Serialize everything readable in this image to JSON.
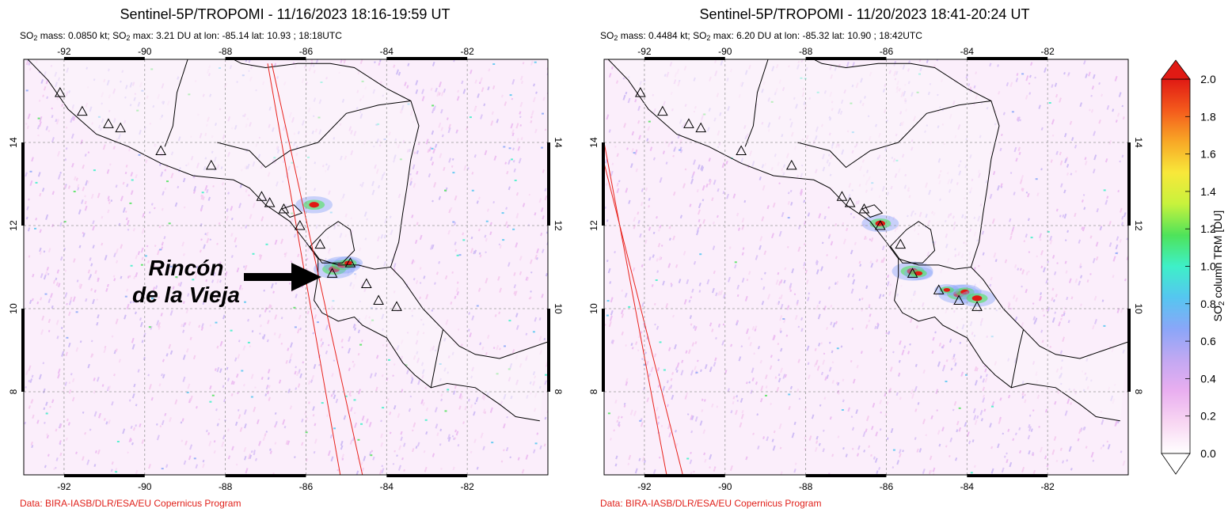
{
  "panels": [
    {
      "title": "Sentinel-5P/TROPOMI - 11/16/2023 18:16-19:59 UT",
      "stats": {
        "mass_label": "SO",
        "mass_sub": "2",
        "mass_value": " mass: 0.0850 kt; ",
        "max_label": "SO",
        "max_sub": "2",
        "max_value": " max: 3.21 DU at lon: -85.14 lat: 10.93 ; 18:18UTC"
      },
      "credit": "Data: BIRA-IASB/DLR/ESA/EU Copernicus Program",
      "volcanoes": [
        [
          -92.1,
          15.2
        ],
        [
          -91.55,
          14.75
        ],
        [
          -90.9,
          14.45
        ],
        [
          -90.6,
          14.35
        ],
        [
          -89.6,
          13.8
        ],
        [
          -88.35,
          13.45
        ],
        [
          -87.1,
          12.7
        ],
        [
          -86.9,
          12.55
        ],
        [
          -86.55,
          12.4
        ],
        [
          -86.15,
          12.0
        ],
        [
          -85.65,
          11.55
        ],
        [
          -85.35,
          10.85
        ],
        [
          -84.9,
          11.1
        ],
        [
          -84.5,
          10.6
        ],
        [
          -84.2,
          10.2
        ],
        [
          -83.75,
          10.05
        ]
      ],
      "hotspots": [
        [
          -85.3,
          10.95,
          1.0
        ],
        [
          -85.1,
          11.05,
          0.9
        ],
        [
          -84.95,
          11.1,
          0.7
        ],
        [
          -85.8,
          12.5,
          0.9
        ]
      ],
      "ground_track": [
        [
          -86.95,
          15.9,
          -85.15,
          6.0
        ],
        [
          -86.85,
          15.9,
          -84.6,
          6.0
        ]
      ],
      "annotation": {
        "line1": "Rincón",
        "line2": "de la Vieja"
      }
    },
    {
      "title": "Sentinel-5P/TROPOMI - 11/20/2023 18:41-20:24 UT",
      "stats": {
        "mass_label": "SO",
        "mass_sub": "2",
        "mass_value": " mass: 0.4484 kt; ",
        "max_label": "SO",
        "max_sub": "2",
        "max_value": " max: 6.20 DU at lon: -85.32 lat: 10.90 ; 18:42UTC"
      },
      "credit": "Data: BIRA-IASB/DLR/ESA/EU Copernicus Program",
      "volcanoes": [
        [
          -92.1,
          15.2
        ],
        [
          -91.55,
          14.75
        ],
        [
          -90.9,
          14.45
        ],
        [
          -90.6,
          14.35
        ],
        [
          -89.6,
          13.8
        ],
        [
          -88.35,
          13.45
        ],
        [
          -87.1,
          12.7
        ],
        [
          -86.9,
          12.55
        ],
        [
          -86.55,
          12.4
        ],
        [
          -86.15,
          12.0
        ],
        [
          -85.65,
          11.55
        ],
        [
          -85.35,
          10.85
        ],
        [
          -84.7,
          10.45
        ],
        [
          -84.2,
          10.2
        ],
        [
          -83.75,
          10.05
        ]
      ],
      "hotspots": [
        [
          -85.35,
          10.9,
          1.0
        ],
        [
          -84.2,
          10.35,
          1.0
        ],
        [
          -84.05,
          10.4,
          0.8
        ],
        [
          -83.75,
          10.25,
          0.9
        ],
        [
          -86.15,
          12.05,
          0.9
        ],
        [
          -84.5,
          10.45,
          0.6
        ],
        [
          -85.2,
          10.85,
          0.7
        ]
      ],
      "ground_track": [
        [
          -93.0,
          14.0,
          -91.45,
          6.0
        ],
        [
          -93.0,
          13.5,
          -91.05,
          6.0
        ]
      ],
      "annotation": null
    }
  ],
  "axes": {
    "lon_ticks": [
      "-92",
      "-90",
      "-88",
      "-86",
      "-84",
      "-82"
    ],
    "lat_ticks": [
      "14",
      "12",
      "10",
      "8"
    ],
    "lon_range": [
      -93.0,
      -80.0
    ],
    "lat_range": [
      6.0,
      16.0
    ]
  },
  "colorbar": {
    "label_main": "SO",
    "label_sub": "2",
    "label_rest": " column TRM [DU]",
    "ticks": [
      "2.0",
      "1.8",
      "1.6",
      "1.4",
      "1.2",
      "1.0",
      "0.8",
      "0.6",
      "0.4",
      "0.2",
      "0.0"
    ],
    "range": [
      0.0,
      2.0
    ],
    "colors": [
      "#ffffff",
      "#f8d6f2",
      "#e9aef0",
      "#c2a8f2",
      "#8aa6f8",
      "#55c6f0",
      "#3ef0c8",
      "#4ee35a",
      "#c8f23c",
      "#f8e83a",
      "#f8a826",
      "#f45a1c",
      "#e01a14"
    ]
  },
  "background": {
    "ocean": "#fbeefb",
    "land": "#fbf6fb",
    "coast": "#000000",
    "grid": "#9a9a9a",
    "track": "#e8221c"
  }
}
